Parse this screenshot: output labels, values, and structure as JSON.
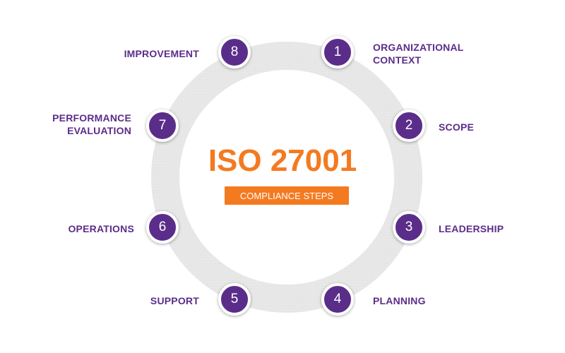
{
  "diagram": {
    "title": "ISO 27001",
    "subtitle": "COMPLIANCE STEPS",
    "colors": {
      "ring": "#e6e6e6",
      "step_circle": "#5b2d8a",
      "step_label": "#5b2d8a",
      "title": "#f47a20",
      "badge": "#f47a20"
    },
    "steps": [
      {
        "number": "1",
        "label": "ORGANIZATIONAL\nCONTEXT"
      },
      {
        "number": "2",
        "label": "SCOPE"
      },
      {
        "number": "3",
        "label": "LEADERSHIP"
      },
      {
        "number": "4",
        "label": "PLANNING"
      },
      {
        "number": "5",
        "label": "SUPPORT"
      },
      {
        "number": "6",
        "label": "OPERATIONS"
      },
      {
        "number": "7",
        "label": "PERFORMANCE\nEVALUATION"
      },
      {
        "number": "8",
        "label": "IMPROVEMENT"
      }
    ]
  }
}
